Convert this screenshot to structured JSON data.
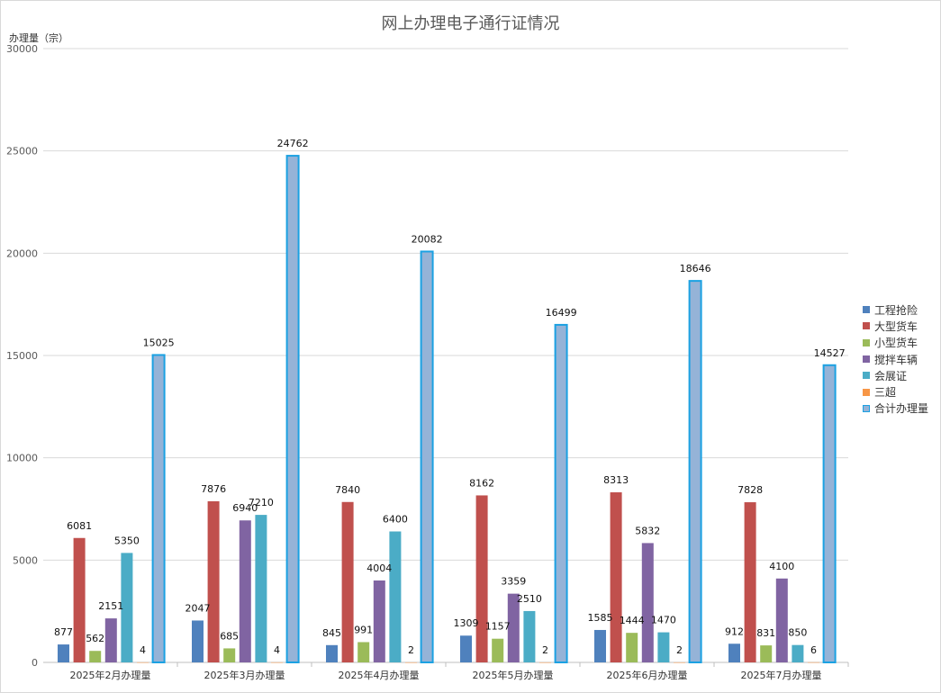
{
  "chart_data": {
    "type": "bar",
    "title": "网上办理电子通行证情况",
    "ylabel": "办理量（宗）",
    "xlabel": "",
    "ylim": [
      0,
      30000
    ],
    "yticks": [
      0,
      5000,
      10000,
      15000,
      20000,
      25000,
      30000
    ],
    "grid": true,
    "legend_position": "right",
    "categories": [
      "2025年2月办理量",
      "2025年3月办理量",
      "2025年4月办理量",
      "2025年5月办理量",
      "2025年6月办理量",
      "2025年7月办理量"
    ],
    "series": [
      {
        "name": "工程抢险",
        "color": "#4f81bd",
        "values": [
          877,
          2047,
          845,
          1309,
          1585,
          912
        ]
      },
      {
        "name": "大型货车",
        "color": "#c0504d",
        "values": [
          6081,
          7876,
          7840,
          8162,
          8313,
          7828
        ]
      },
      {
        "name": "小型货车",
        "color": "#9bbb59",
        "values": [
          562,
          685,
          991,
          1157,
          1444,
          831
        ]
      },
      {
        "name": "搅拌车辆",
        "color": "#8064a2",
        "values": [
          2151,
          6940,
          4004,
          3359,
          5832,
          4100
        ]
      },
      {
        "name": "会展证",
        "color": "#4bacc6",
        "values": [
          5350,
          7210,
          6400,
          2510,
          1470,
          850
        ]
      },
      {
        "name": "三超",
        "color": "#f79646",
        "values": [
          4,
          4,
          2,
          2,
          2,
          6
        ]
      },
      {
        "name": "合计办理量",
        "color": "#95b3d7",
        "border": "#1ba1e2",
        "values": [
          15025,
          24762,
          20082,
          16499,
          18646,
          14527
        ]
      }
    ]
  }
}
